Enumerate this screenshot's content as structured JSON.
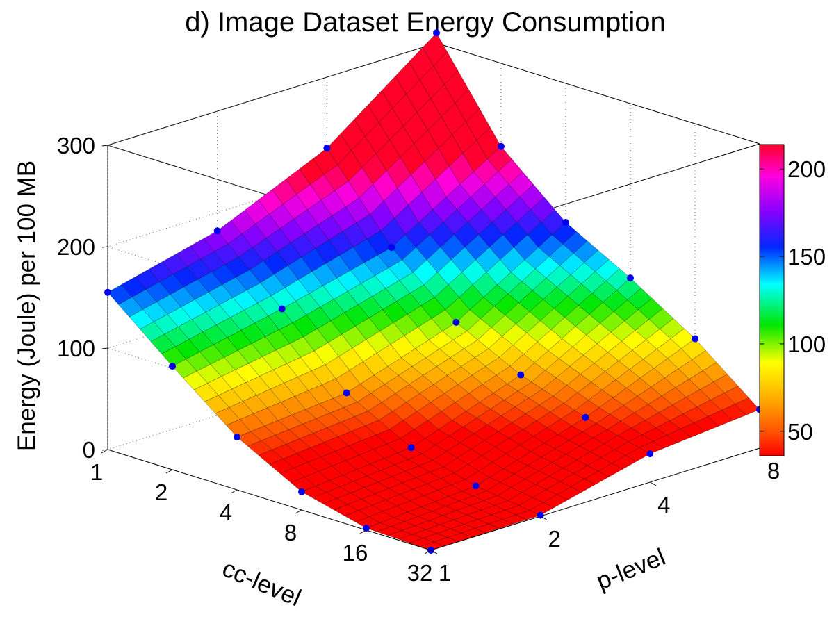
{
  "chart_data": {
    "type": "surface3d",
    "title": "d) Image Dataset Energy Consumption",
    "xlabel": "cc-level",
    "ylabel": "p-level",
    "zlabel": "Energy (Joule) per 100 MB",
    "cc_ticks": [
      1,
      2,
      4,
      8,
      16,
      32
    ],
    "p_ticks": [
      1,
      2,
      4,
      8
    ],
    "z_ticks": [
      0,
      100,
      200,
      300
    ],
    "zlim": [
      0,
      300
    ],
    "colorbar": {
      "ticks": [
        50,
        100,
        150,
        200
      ],
      "range": [
        36,
        214
      ]
    },
    "colors": {
      "background": "#ffffff",
      "axis": "#000000",
      "grid": "#555555",
      "marker": "#0000ee"
    },
    "points": [
      {
        "cc": 1,
        "p": 1,
        "energy": 155
      },
      {
        "cc": 2,
        "p": 1,
        "energy": 102
      },
      {
        "cc": 4,
        "p": 1,
        "energy": 52
      },
      {
        "cc": 8,
        "p": 1,
        "energy": 18
      },
      {
        "cc": 16,
        "p": 1,
        "energy": 2
      },
      {
        "cc": 32,
        "p": 1,
        "energy": 0
      },
      {
        "cc": 1,
        "p": 2,
        "energy": 182
      },
      {
        "cc": 2,
        "p": 2,
        "energy": 125
      },
      {
        "cc": 4,
        "p": 2,
        "energy": 62
      },
      {
        "cc": 8,
        "p": 2,
        "energy": 28
      },
      {
        "cc": 16,
        "p": 2,
        "energy": 10
      },
      {
        "cc": 32,
        "p": 2,
        "energy": 1
      },
      {
        "cc": 1,
        "p": 4,
        "energy": 230
      },
      {
        "cc": 2,
        "p": 4,
        "energy": 152
      },
      {
        "cc": 4,
        "p": 4,
        "energy": 98
      },
      {
        "cc": 8,
        "p": 4,
        "energy": 66
      },
      {
        "cc": 16,
        "p": 4,
        "energy": 44
      },
      {
        "cc": 32,
        "p": 4,
        "energy": 28
      },
      {
        "cc": 1,
        "p": 8,
        "energy": 310
      },
      {
        "cc": 2,
        "p": 8,
        "energy": 218
      },
      {
        "cc": 4,
        "p": 8,
        "energy": 163
      },
      {
        "cc": 8,
        "p": 8,
        "energy": 128
      },
      {
        "cc": 16,
        "p": 8,
        "energy": 88
      },
      {
        "cc": 32,
        "p": 8,
        "energy": 38
      }
    ]
  }
}
